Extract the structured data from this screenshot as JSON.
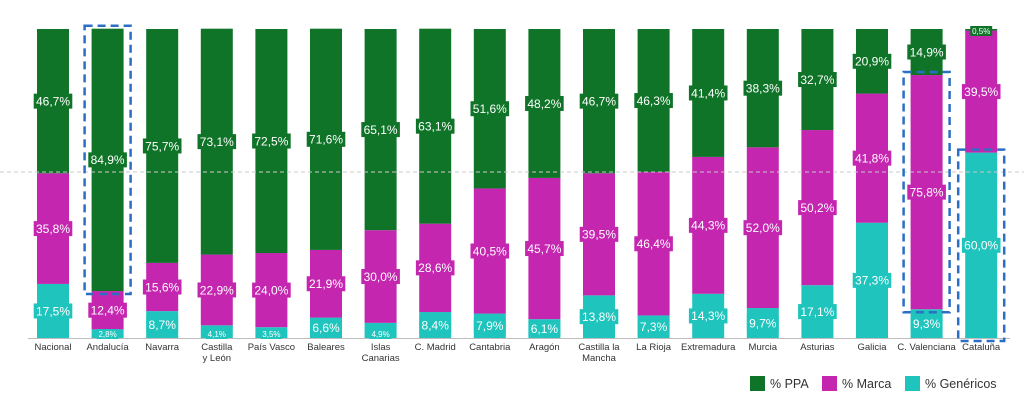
{
  "chart_data": {
    "type": "bar",
    "stacked": true,
    "categories": [
      "Nacional",
      "Andalucía",
      "Navarra",
      "Castilla y León",
      "País Vasco",
      "Baleares",
      "Islas Canarias",
      "C. Madrid",
      "Cantabria",
      "Aragón",
      "Castilla la Mancha",
      "La Rioja",
      "Extremadura",
      "Murcia",
      "Asturias",
      "Galicia",
      "C. Valenciana",
      "Cataluña"
    ],
    "category_lines": [
      [
        "Nacional"
      ],
      [
        "Andalucía"
      ],
      [
        "Navarra"
      ],
      [
        "Castilla",
        "y León"
      ],
      [
        "País Vasco"
      ],
      [
        "Baleares"
      ],
      [
        "Islas",
        "Canarias"
      ],
      [
        "C. Madrid"
      ],
      [
        "Cantabria"
      ],
      [
        "Aragón"
      ],
      [
        "Castilla la",
        "Mancha"
      ],
      [
        "La Rioja"
      ],
      [
        "Extremadura"
      ],
      [
        "Murcia"
      ],
      [
        "Asturias"
      ],
      [
        "Galicia"
      ],
      [
        "C. Valenciana"
      ],
      [
        "Cataluña"
      ]
    ],
    "series": [
      {
        "name": "% Genéricos",
        "color": "#1fc4bd",
        "values": [
          17.5,
          2.8,
          8.7,
          4.1,
          3.5,
          6.6,
          4.9,
          8.4,
          7.9,
          6.1,
          13.8,
          7.3,
          14.3,
          9.7,
          17.1,
          37.3,
          9.3,
          60.0
        ],
        "labels": [
          "17,5%",
          "2,8%",
          "8,7%",
          "4,1%",
          "3,5%",
          "6,6%",
          "4,9%",
          "8,4%",
          "7,9%",
          "6,1%",
          "13,8%",
          "7,3%",
          "14,3%",
          "9,7%",
          "17,1%",
          "37,3%",
          "9,3%",
          "60,0%"
        ]
      },
      {
        "name": "% Marca",
        "color": "#c426b0",
        "values": [
          35.8,
          12.4,
          15.6,
          22.9,
          24.0,
          21.9,
          30.0,
          28.6,
          40.5,
          45.7,
          39.5,
          46.4,
          44.3,
          52.0,
          50.2,
          41.8,
          75.8,
          39.5
        ],
        "labels": [
          "35,8%",
          "12,4%",
          "15,6%",
          "22,9%",
          "24,0%",
          "21,9%",
          "30,0%",
          "28,6%",
          "40,5%",
          "45,7%",
          "39,5%",
          "46,4%",
          "44,3%",
          "52,0%",
          "50,2%",
          "41,8%",
          "75,8%",
          "39,5%"
        ]
      },
      {
        "name": "% PPA",
        "color": "#0f7428",
        "values": [
          46.7,
          84.9,
          75.7,
          73.1,
          72.5,
          71.6,
          65.1,
          63.1,
          51.6,
          48.2,
          46.7,
          46.3,
          41.4,
          38.3,
          32.7,
          20.9,
          14.9,
          0.5
        ],
        "labels": [
          "46,7%",
          "84,9%",
          "75,7%",
          "73,1%",
          "72,5%",
          "71,6%",
          "65,1%",
          "63,1%",
          "51,6%",
          "48,2%",
          "46,7%",
          "46,3%",
          "41,4%",
          "38,3%",
          "32,7%",
          "20,9%",
          "14,9%",
          "0,5%"
        ]
      }
    ],
    "ylim": [
      0,
      100
    ],
    "reference_line": 50,
    "highlighted": [
      {
        "category": "Andalucía",
        "series": "% PPA"
      },
      {
        "category": "C. Valenciana",
        "series": "% Marca"
      },
      {
        "category": "Cataluña",
        "series": "% Genéricos"
      }
    ],
    "legend": {
      "position": "bottom-right",
      "order": [
        "% PPA",
        "% Marca",
        "% Genéricos"
      ]
    },
    "highlight_color": "#2b6fc4",
    "grid": false
  }
}
